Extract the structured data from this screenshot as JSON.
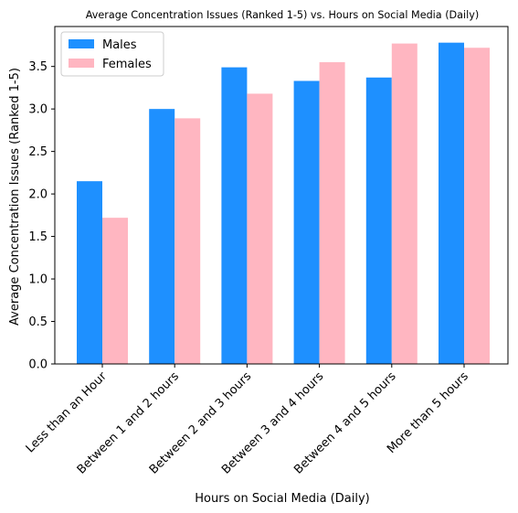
{
  "chart_data": {
    "type": "bar",
    "title": "Average Concentration Issues (Ranked 1-5) vs. Hours on Social Media (Daily)",
    "xlabel": "Hours on Social Media (Daily)",
    "ylabel": "Average Concentration Issues (Ranked 1-5)",
    "categories": [
      "Less than an Hour",
      "Between 1 and 2 hours",
      "Between 2 and 3 hours",
      "Between 3 and 4 hours",
      "Between 4 and 5 hours",
      "More than 5 hours"
    ],
    "series": [
      {
        "name": "Males",
        "color": "#1E90FF",
        "values": [
          2.15,
          3.0,
          3.49,
          3.33,
          3.37,
          3.78
        ]
      },
      {
        "name": "Females",
        "color": "#FFB6C1",
        "values": [
          1.72,
          2.89,
          3.18,
          3.55,
          3.77,
          3.72
        ]
      }
    ],
    "ylim": [
      0,
      3.97
    ],
    "yticks": [
      "0.0",
      "0.5",
      "1.0",
      "1.5",
      "2.0",
      "2.5",
      "3.0",
      "3.5"
    ],
    "legend": "top-left",
    "grid": false
  }
}
